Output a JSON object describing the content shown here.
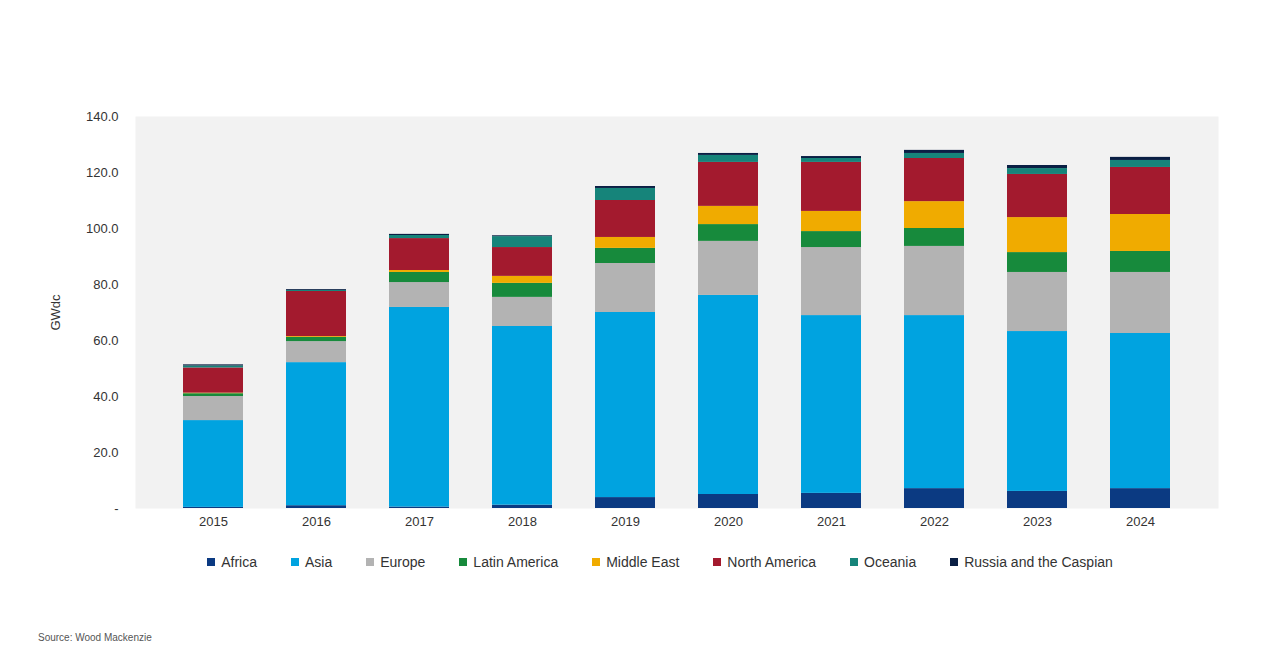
{
  "chart_data": {
    "type": "bar",
    "stacked": true,
    "grid": false,
    "legend": "bottom",
    "y_label": "GWdc",
    "caption": "Source: Wood Mackenzie",
    "categories": [
      "2015",
      "2016",
      "2017",
      "2018",
      "2019",
      "2020",
      "2021",
      "2022",
      "2023",
      "2024"
    ],
    "ylim": [
      0,
      140
    ],
    "yticks": [
      {
        "value": 0,
        "label": "-"
      },
      {
        "value": 20,
        "label": "20.0"
      },
      {
        "value": 40,
        "label": "40.0"
      },
      {
        "value": 60,
        "label": "60.0"
      },
      {
        "value": 80,
        "label": "80.0"
      },
      {
        "value": 100,
        "label": "100.0"
      },
      {
        "value": 120,
        "label": "120.0"
      },
      {
        "value": 140,
        "label": "140.0"
      }
    ],
    "series": [
      {
        "name": "Africa",
        "color": "#0b3a82",
        "values": [
          0.4,
          1.0,
          0.5,
          1.2,
          3.9,
          5.0,
          5.4,
          7.1,
          6.1,
          7.1
        ]
      },
      {
        "name": "Asia",
        "color": "#00a3e0",
        "values": [
          31.0,
          51.1,
          71.3,
          63.8,
          66.1,
          71.1,
          63.5,
          61.8,
          57.1,
          55.4
        ]
      },
      {
        "name": "Europe",
        "color": "#b3b3b3",
        "values": [
          8.6,
          7.5,
          8.9,
          10.4,
          17.5,
          19.3,
          24.3,
          24.7,
          21.1,
          21.8
        ]
      },
      {
        "name": "Latin America",
        "color": "#178a3c",
        "values": [
          1.0,
          1.5,
          3.6,
          5.0,
          5.4,
          6.0,
          5.7,
          6.4,
          7.1,
          7.5
        ]
      },
      {
        "name": "Middle East",
        "color": "#f0ab00",
        "values": [
          0.2,
          0.3,
          0.7,
          2.5,
          3.9,
          6.5,
          7.2,
          9.6,
          12.5,
          13.2
        ]
      },
      {
        "name": "North America",
        "color": "#a31a2e",
        "values": [
          9.0,
          16.1,
          11.4,
          10.3,
          13.2,
          15.7,
          17.5,
          15.4,
          15.4,
          16.8
        ]
      },
      {
        "name": "Oceania",
        "color": "#16847a",
        "values": [
          0.7,
          0.4,
          1.1,
          3.9,
          4.3,
          2.5,
          1.4,
          1.8,
          2.1,
          2.5
        ]
      },
      {
        "name": "Russia and the Caspian",
        "color": "#0a1f44",
        "values": [
          0.4,
          0.3,
          0.4,
          0.3,
          0.7,
          0.7,
          0.7,
          1.1,
          1.1,
          1.1
        ]
      }
    ]
  }
}
